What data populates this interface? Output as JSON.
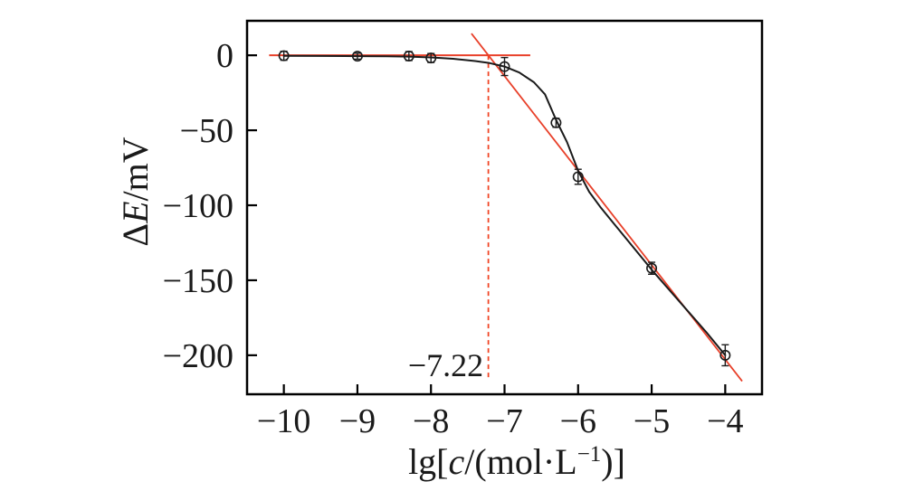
{
  "figure": {
    "background": "#ffffff"
  },
  "chart_data": {
    "type": "scatter",
    "title": "",
    "xlabel_parts": [
      {
        "t": "lg["
      },
      {
        "t": "c",
        "italic": true
      },
      {
        "t": "/(mol·L"
      },
      {
        "t": "−1",
        "sup": true
      },
      {
        "t": ")]"
      }
    ],
    "ylabel_parts": [
      {
        "t": "Δ"
      },
      {
        "t": "E",
        "italic": true
      },
      {
        "t": "/mV"
      }
    ],
    "xlim": [
      -10.5,
      -3.5
    ],
    "ylim": [
      -226,
      23
    ],
    "x_ticks": [
      {
        "v": -10,
        "label": "−10"
      },
      {
        "v": -9,
        "label": "−9"
      },
      {
        "v": -8,
        "label": "−8"
      },
      {
        "v": -7,
        "label": "−7"
      },
      {
        "v": -6,
        "label": "−6"
      },
      {
        "v": -5,
        "label": "−5"
      },
      {
        "v": -4,
        "label": "−4"
      }
    ],
    "y_ticks": [
      {
        "v": 0,
        "label": "0"
      },
      {
        "v": -50,
        "label": "−50"
      },
      {
        "v": -100,
        "label": "−100"
      },
      {
        "v": -150,
        "label": "−150"
      },
      {
        "v": -200,
        "label": "−200"
      }
    ],
    "points": [
      {
        "x": -10,
        "y": -0.3,
        "err": 3
      },
      {
        "x": -9,
        "y": -0.6,
        "err": 2
      },
      {
        "x": -8.3,
        "y": -0.5,
        "err": 3
      },
      {
        "x": -8,
        "y": -1.8,
        "err": 3
      },
      {
        "x": -7,
        "y": -7.5,
        "err": 6
      },
      {
        "x": -6.3,
        "y": -45,
        "err": 3
      },
      {
        "x": -6,
        "y": -81,
        "err": 5
      },
      {
        "x": -5,
        "y": -142,
        "err": 4
      },
      {
        "x": -4,
        "y": -200,
        "err": 7
      }
    ],
    "fit_curve": [
      [
        -10,
        -0.4
      ],
      [
        -9.5,
        -0.45
      ],
      [
        -9,
        -0.55
      ],
      [
        -8.6,
        -0.7
      ],
      [
        -8.3,
        -0.9
      ],
      [
        -8,
        -1.4
      ],
      [
        -7.7,
        -2.3
      ],
      [
        -7.4,
        -3.8
      ],
      [
        -7.2,
        -5.2
      ],
      [
        -7.0,
        -7.5
      ],
      [
        -6.8,
        -11.5
      ],
      [
        -6.6,
        -18
      ],
      [
        -6.45,
        -26
      ],
      [
        -6.3,
        -43
      ],
      [
        -6.15,
        -58
      ],
      [
        -6.0,
        -77
      ],
      [
        -5.85,
        -91
      ],
      [
        -5.7,
        -101
      ],
      [
        -5.5,
        -113
      ],
      [
        -5.25,
        -128
      ],
      [
        -5.0,
        -143
      ],
      [
        -4.75,
        -157
      ],
      [
        -4.5,
        -171
      ],
      [
        -4.25,
        -185
      ],
      [
        -4.0,
        -200
      ]
    ],
    "baseline": {
      "x1": -10.2,
      "y1": 0,
      "x2": -6.65,
      "y2": 0
    },
    "tangent": {
      "x1": -7.45,
      "y1": 14.5,
      "x2": -3.77,
      "y2": -217.3
    },
    "detection_limit": {
      "x": -7.22,
      "y_top": 0,
      "y_bottom": -217,
      "label": "−7.22",
      "label_x": -7.8,
      "label_y": -206
    },
    "colors": {
      "axis": "#000000",
      "curve": "#1a1a1a",
      "marker": "#1a1a1a",
      "red_line": "#e8402a",
      "dashed": "#f04323",
      "text": "#1a1a1a"
    }
  }
}
